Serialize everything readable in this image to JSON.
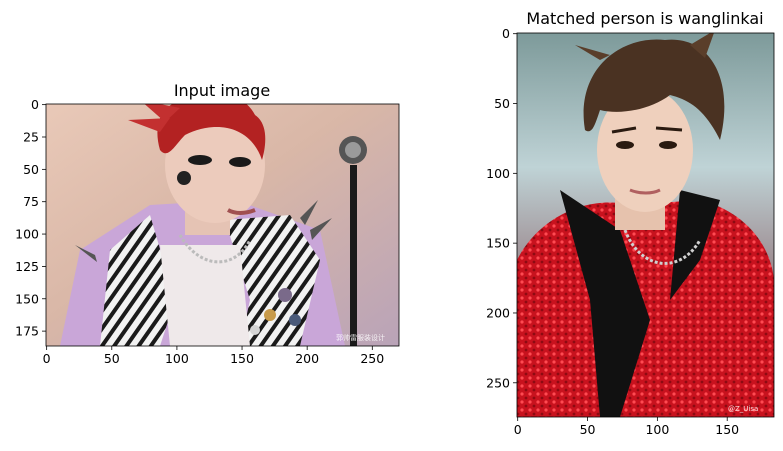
{
  "chart_data": [
    {
      "type": "image",
      "title": "Input image",
      "xlabel": "",
      "ylabel": "",
      "xlim": [
        -0.5,
        270.5
      ],
      "ylim": [
        186.5,
        -0.5
      ],
      "xticks": [
        0,
        50,
        100,
        150,
        200,
        250
      ],
      "yticks": [
        0,
        25,
        50,
        75,
        100,
        125,
        150,
        175
      ],
      "grid": false,
      "image_description": "performer with spiky red hair, dramatic eye makeup, earpiece, zebra-print and lilac spiked vest with badges, standing at a microphone stand; small watermark at bottom right"
    },
    {
      "type": "image",
      "title": "Matched person is wanglinkai",
      "xlabel": "",
      "ylabel": "",
      "xlim": [
        -0.5,
        183.5
      ],
      "ylim": [
        274.5,
        -0.5
      ],
      "xticks": [
        0,
        50,
        100,
        150
      ],
      "yticks": [
        0,
        50,
        100,
        150,
        200,
        250
      ],
      "grid": false,
      "image_description": "young man with messy brown hair wearing a red sequined jacket with a black collar and silver necklaces, blurred light background; small watermark at bottom right"
    }
  ],
  "colors": {
    "axes": "#000000",
    "background": "#ffffff"
  }
}
